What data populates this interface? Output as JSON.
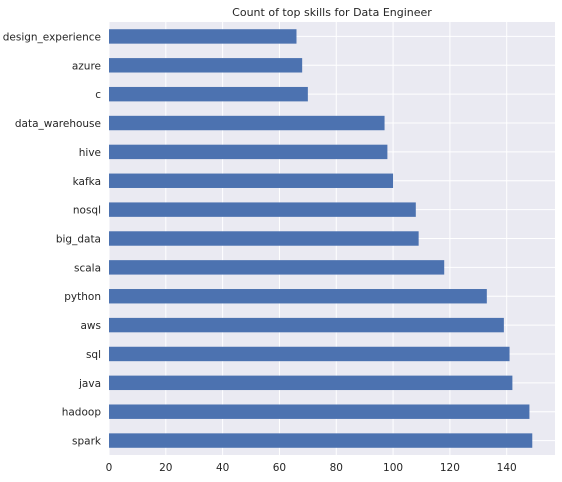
{
  "chart_data": {
    "type": "bar",
    "orientation": "horizontal",
    "title": "Count of top skills for Data Engineer",
    "xlabel": "",
    "ylabel": "",
    "categories": [
      "spark",
      "hadoop",
      "java",
      "sql",
      "aws",
      "python",
      "scala",
      "big_data",
      "nosql",
      "kafka",
      "hive",
      "data_warehouse",
      "c",
      "azure",
      "design_experience"
    ],
    "values": [
      149,
      148,
      142,
      141,
      139,
      133,
      118,
      109,
      108,
      100,
      98,
      97,
      70,
      68,
      66
    ],
    "xlim": [
      0,
      157
    ],
    "x_ticks": [
      0,
      20,
      40,
      60,
      80,
      100,
      120,
      140
    ],
    "grid": true,
    "bar_color": "#4c72b0",
    "background_color": "#eaeaf2",
    "grid_color": "#ffffff"
  }
}
